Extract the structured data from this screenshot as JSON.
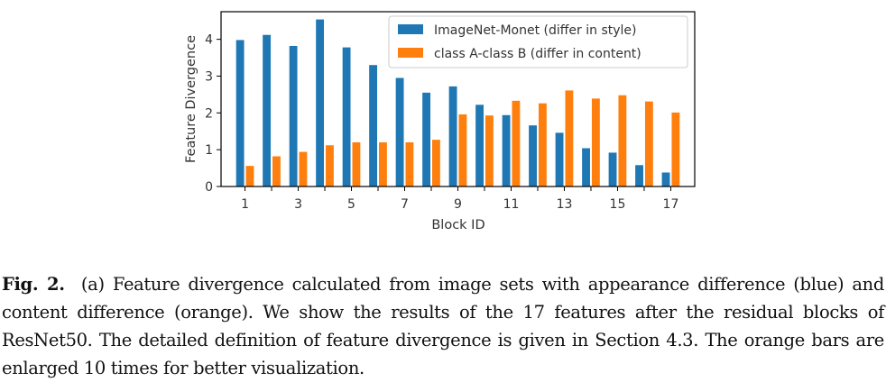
{
  "chart_data": {
    "type": "bar",
    "xlabel": "Block ID",
    "ylabel": "Feature Divergence",
    "categories": [
      1,
      2,
      3,
      4,
      5,
      6,
      7,
      8,
      9,
      10,
      11,
      12,
      13,
      14,
      15,
      16,
      17
    ],
    "x_tick_labels": [
      "1",
      "3",
      "5",
      "7",
      "9",
      "11",
      "13",
      "15",
      "17"
    ],
    "y_tick_labels": [
      "0",
      "1",
      "2",
      "3",
      "4"
    ],
    "ylim": [
      0,
      4.75
    ],
    "series": [
      {
        "name": "ImageNet-Monet (differ in style)",
        "color": "#1f77b4",
        "values": [
          3.98,
          4.12,
          3.82,
          4.54,
          3.78,
          3.3,
          2.95,
          2.55,
          2.72,
          2.22,
          1.94,
          1.66,
          1.46,
          1.04,
          0.92,
          0.58,
          0.38
        ]
      },
      {
        "name": "class A-class B (differ in content)",
        "color": "#ff7f0e",
        "values": [
          0.56,
          0.82,
          0.94,
          1.12,
          1.2,
          1.2,
          1.2,
          1.27,
          1.96,
          1.93,
          2.33,
          2.26,
          2.61,
          2.39,
          2.48,
          2.31,
          2.01
        ]
      }
    ],
    "legend_position": "top-right",
    "grid": false
  },
  "caption": {
    "label": "Fig. 2.",
    "text": "(a) Feature divergence calculated from image sets with appearance difference (blue) and content difference (orange). We show the results of the 17 features after the residual blocks of ResNet50. The detailed definition of feature divergence is given in Section 4.3. The orange bars are enlarged 10 times for better visualization."
  }
}
